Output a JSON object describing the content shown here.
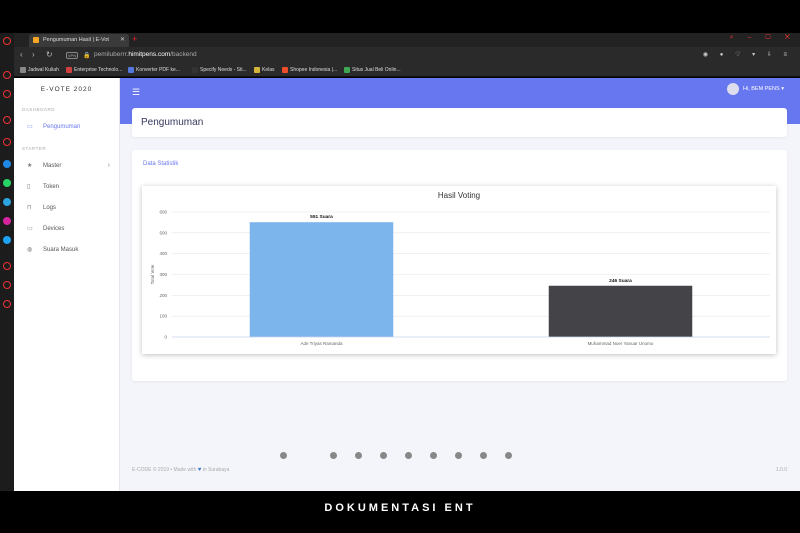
{
  "browser": {
    "tab_title": "Pengumuman Hasil | E-Vot",
    "url_base": "pemiluberrr.",
    "url_host": "himitpens.com",
    "url_path": "/backend",
    "vpn_label": "VPN",
    "bookmarks": [
      {
        "label": "Jadwal Kuliah",
        "color": "#888888"
      },
      {
        "label": "Enterprise Technolo...",
        "color": "#d04040"
      },
      {
        "label": "Konverter PDF ke...",
        "color": "#5577dd"
      },
      {
        "label": "Specify Needs - Sti...",
        "color": "#333333"
      },
      {
        "label": "Kelas",
        "color": "#d4b43a"
      },
      {
        "label": "Shopee Indonesia |...",
        "color": "#ee4d2d"
      },
      {
        "label": "Situs Jual Beli Onlin...",
        "color": "#3fa654"
      }
    ]
  },
  "sidebar": {
    "brand": "E-VOTE 2020",
    "section_dashboard": "DASHBOARD",
    "section_starter": "STARTER",
    "items": [
      {
        "label": "Pengumuman",
        "icon": "monitor-icon"
      },
      {
        "label": "Master",
        "icon": "star-icon"
      },
      {
        "label": "Token",
        "icon": "document-icon"
      },
      {
        "label": "Logs",
        "icon": "lock-icon"
      },
      {
        "label": "Devices",
        "icon": "laptop-icon"
      },
      {
        "label": "Suara Masuk",
        "icon": "globe-icon"
      }
    ]
  },
  "topbar": {
    "user_greeting": "Hi, BEM PENS"
  },
  "main": {
    "page_title": "Pengumuman",
    "card_title": "Data Statistik"
  },
  "footer": {
    "left_prefix": "E-CODE © 2019",
    "made_with": "• Made with",
    "left_suffix": "in Surabaya",
    "version": "1.0.0"
  },
  "caption": "DOKUMENTASI ENT",
  "colors": {
    "accent": "#6777ef",
    "bar1": "#7cb5ec",
    "bar2": "#434348"
  },
  "chart_data": {
    "type": "bar",
    "title": "Hasil Voting",
    "ylabel": "Total Vote",
    "xlabel": "",
    "categories": [
      "Ade Triyas Ramanda",
      "Muhammad Noer Yanuar Unomo"
    ],
    "values": [
      551,
      246
    ],
    "data_labels": [
      "551 Suara",
      "246 Suara"
    ],
    "ylim": [
      0,
      600
    ],
    "yticks": [
      0,
      100,
      200,
      300,
      400,
      500,
      600
    ],
    "grid": true,
    "legend": "none"
  }
}
